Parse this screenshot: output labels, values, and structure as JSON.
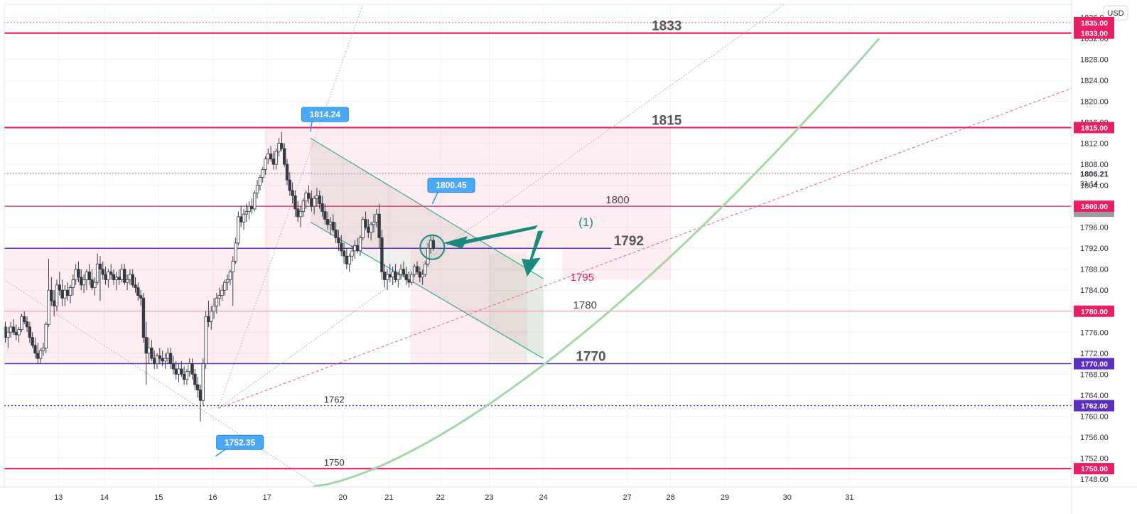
{
  "chart_data": {
    "type": "candlestick",
    "currency": "USD",
    "countdown": "31:14",
    "last_price": "1806.21",
    "ylim": [
      1746.5,
      1838.5
    ],
    "xlim": [
      12.0,
      31.7
    ],
    "y_ticks": [
      "1748.00",
      "1752.00",
      "1756.00",
      "1760.00",
      "1764.00",
      "1768.00",
      "1772.00",
      "1776.00",
      "1780.00",
      "1784.00",
      "1788.00",
      "1792.00",
      "1796.00",
      "1800.00",
      "1804.00",
      "1808.00",
      "1812.00",
      "1816.00",
      "1820.00",
      "1824.00",
      "1828.00",
      "1832.00",
      "1836.00"
    ],
    "x_ticks": [
      {
        "label": "13",
        "x": 13.0
      },
      {
        "label": "14",
        "x": 13.85
      },
      {
        "label": "15",
        "x": 14.85
      },
      {
        "label": "16",
        "x": 15.85
      },
      {
        "label": "17",
        "x": 16.85
      },
      {
        "label": "20",
        "x": 18.25
      },
      {
        "label": "21",
        "x": 19.1
      },
      {
        "label": "22",
        "x": 20.05
      },
      {
        "label": "23",
        "x": 20.95
      },
      {
        "label": "24",
        "x": 21.95
      },
      {
        "label": "27",
        "x": 23.5
      },
      {
        "label": "28",
        "x": 24.3
      },
      {
        "label": "29",
        "x": 25.3
      },
      {
        "label": "30",
        "x": 26.45
      },
      {
        "label": "31",
        "x": 27.6
      }
    ],
    "price_tags": [
      {
        "label": "1835.00",
        "value": 1835.0,
        "color": "#e91e63"
      },
      {
        "label": "1833.00",
        "value": 1833.0,
        "color": "#e91e63"
      },
      {
        "label": "1815.00",
        "value": 1815.0,
        "color": "#e91e63"
      },
      {
        "label": "1800.00",
        "value": 1800.0,
        "color": "#e91e63"
      },
      {
        "label": "1780.00",
        "value": 1780.0,
        "color": "#e91e63"
      },
      {
        "label": "1770.00",
        "value": 1770.0,
        "color": "#5b2fc4"
      },
      {
        "label": "1762.00",
        "value": 1762.0,
        "color": "#5b2fc4"
      },
      {
        "label": "1750.00",
        "value": 1750.0,
        "color": "#e91e63"
      }
    ],
    "levels": [
      {
        "value": 1835.0,
        "style": "dotted-pink"
      },
      {
        "value": 1833.0,
        "style": "solid-pink-thick",
        "label": "1833",
        "label_x": 23.95
      },
      {
        "value": 1815.0,
        "style": "solid-pink-thick",
        "label": "1815",
        "label_x": 23.95
      },
      {
        "value": 1800.0,
        "style": "solid-pink",
        "label": "1800",
        "label_x": 23.1
      },
      {
        "value": 1792.0,
        "style": "solid-purple",
        "label": "1792",
        "label_x": 23.25
      },
      {
        "value": 1780.0,
        "style": "thin-pink",
        "label": "1780",
        "label_x": 22.5
      },
      {
        "value": 1770.0,
        "style": "solid-purple",
        "label": "1770",
        "label_x": 22.55
      },
      {
        "value": 1762.0,
        "style": "dotted-blue",
        "label": "1762",
        "label_x": 17.9
      },
      {
        "value": 1750.0,
        "style": "solid-pink-thick",
        "label": "1750",
        "label_x": 17.9
      }
    ],
    "label_1795": {
      "text": "1795",
      "x": 22.45,
      "y": 1786.5
    },
    "callouts": [
      {
        "label": "1814.24",
        "x": 17.65,
        "y": 1814.24,
        "tag_x": 17.92,
        "tag_y": 1817.5
      },
      {
        "label": "1800.45",
        "x": 19.9,
        "y": 1800.45,
        "tag_x": 20.25,
        "tag_y": 1804.0
      },
      {
        "label": "1752.35",
        "x": 15.9,
        "y": 1752.35,
        "tag_x": 16.35,
        "tag_y": 1755.0
      }
    ],
    "annotation": {
      "text": "(1)",
      "x": 22.6,
      "y": 1796.2
    },
    "candles_ohlc": [
      [
        12.02,
        1777.0,
        1778.0,
        1774.0,
        1775.0
      ],
      [
        12.07,
        1775.0,
        1777.0,
        1773.0,
        1776.0
      ],
      [
        12.12,
        1776.0,
        1778.0,
        1775.0,
        1777.0
      ],
      [
        12.17,
        1777.0,
        1778.5,
        1775.5,
        1776.0
      ],
      [
        12.22,
        1776.0,
        1777.5,
        1774.5,
        1775.5
      ],
      [
        12.27,
        1775.5,
        1777.0,
        1774.0,
        1776.5
      ],
      [
        12.32,
        1776.5,
        1779.5,
        1776.0,
        1779.0
      ],
      [
        12.37,
        1779.0,
        1780.0,
        1777.5,
        1778.0
      ],
      [
        12.42,
        1778.0,
        1779.0,
        1776.0,
        1777.0
      ],
      [
        12.47,
        1777.0,
        1778.0,
        1774.0,
        1775.0
      ],
      [
        12.52,
        1775.0,
        1776.0,
        1773.0,
        1773.5
      ],
      [
        12.57,
        1773.5,
        1775.0,
        1771.0,
        1772.0
      ],
      [
        12.62,
        1772.0,
        1774.0,
        1770.0,
        1771.0
      ],
      [
        12.67,
        1771.0,
        1773.0,
        1770.0,
        1772.5
      ],
      [
        12.72,
        1772.5,
        1774.0,
        1771.5,
        1773.0
      ],
      [
        12.77,
        1773.0,
        1778.0,
        1772.0,
        1777.5
      ],
      [
        12.82,
        1777.5,
        1790.0,
        1777.0,
        1784.0
      ],
      [
        12.87,
        1784.0,
        1786.5,
        1781.0,
        1782.0
      ],
      [
        12.92,
        1782.0,
        1784.0,
        1779.0,
        1781.0
      ],
      [
        12.97,
        1781.0,
        1786.0,
        1780.0,
        1785.0
      ],
      [
        13.02,
        1785.0,
        1787.5,
        1783.0,
        1784.0
      ],
      [
        13.07,
        1784.0,
        1786.0,
        1781.0,
        1782.5
      ],
      [
        13.12,
        1782.5,
        1785.0,
        1781.0,
        1784.0
      ],
      [
        13.17,
        1784.0,
        1785.5,
        1782.0,
        1783.0
      ],
      [
        13.22,
        1783.0,
        1785.0,
        1781.5,
        1784.5
      ],
      [
        13.27,
        1784.5,
        1787.0,
        1783.0,
        1786.0
      ],
      [
        13.32,
        1786.0,
        1789.0,
        1785.0,
        1788.0
      ],
      [
        13.37,
        1788.0,
        1789.5,
        1785.5,
        1786.5
      ],
      [
        13.42,
        1786.5,
        1788.0,
        1784.0,
        1785.0
      ],
      [
        13.47,
        1785.0,
        1787.0,
        1783.5,
        1786.0
      ],
      [
        13.52,
        1786.0,
        1788.0,
        1784.0,
        1787.5
      ],
      [
        13.57,
        1787.5,
        1789.0,
        1785.0,
        1786.0
      ],
      [
        13.62,
        1786.0,
        1788.0,
        1784.0,
        1784.5
      ],
      [
        13.67,
        1784.5,
        1786.5,
        1783.0,
        1785.5
      ],
      [
        13.72,
        1785.5,
        1791.0,
        1785.0,
        1789.0
      ],
      [
        13.77,
        1789.0,
        1790.5,
        1782.0,
        1788.0
      ],
      [
        13.82,
        1788.0,
        1789.5,
        1786.0,
        1787.0
      ],
      [
        13.87,
        1787.0,
        1788.5,
        1785.0,
        1786.0
      ],
      [
        13.92,
        1786.0,
        1788.0,
        1784.5,
        1787.5
      ],
      [
        13.97,
        1787.5,
        1789.0,
        1786.0,
        1787.0
      ],
      [
        14.02,
        1787.0,
        1788.0,
        1785.0,
        1786.0
      ],
      [
        14.07,
        1786.0,
        1787.5,
        1784.0,
        1786.5
      ],
      [
        14.12,
        1786.5,
        1788.0,
        1785.0,
        1786.0
      ],
      [
        14.17,
        1786.0,
        1789.0,
        1785.5,
        1788.0
      ],
      [
        14.22,
        1788.0,
        1789.0,
        1785.0,
        1785.5
      ],
      [
        14.27,
        1785.5,
        1787.0,
        1784.0,
        1786.0
      ],
      [
        14.32,
        1786.0,
        1788.0,
        1785.0,
        1787.0
      ],
      [
        14.37,
        1787.0,
        1788.0,
        1784.5,
        1785.0
      ],
      [
        14.42,
        1785.0,
        1786.5,
        1783.5,
        1784.5
      ],
      [
        14.47,
        1784.5,
        1785.5,
        1782.0,
        1783.0
      ],
      [
        14.52,
        1783.0,
        1784.0,
        1781.0,
        1782.5
      ],
      [
        14.57,
        1782.5,
        1783.5,
        1774.0,
        1775.0
      ],
      [
        14.62,
        1775.0,
        1778.0,
        1766.0,
        1772.0
      ],
      [
        14.67,
        1772.0,
        1775.0,
        1770.0,
        1773.0
      ],
      [
        14.72,
        1773.0,
        1774.5,
        1770.5,
        1771.0
      ],
      [
        14.77,
        1771.0,
        1772.5,
        1769.0,
        1770.0
      ],
      [
        14.82,
        1770.0,
        1772.0,
        1769.0,
        1771.5
      ],
      [
        14.87,
        1771.5,
        1773.0,
        1770.0,
        1771.0
      ],
      [
        14.92,
        1771.0,
        1772.5,
        1769.5,
        1770.5
      ],
      [
        14.97,
        1770.5,
        1772.0,
        1769.0,
        1771.0
      ],
      [
        15.02,
        1771.0,
        1773.0,
        1770.0,
        1772.0
      ],
      [
        15.07,
        1772.0,
        1773.0,
        1769.0,
        1770.0
      ],
      [
        15.12,
        1770.0,
        1771.5,
        1768.0,
        1769.0
      ],
      [
        15.17,
        1769.0,
        1770.5,
        1767.0,
        1768.0
      ],
      [
        15.22,
        1768.0,
        1770.0,
        1766.5,
        1769.0
      ],
      [
        15.27,
        1769.0,
        1770.5,
        1767.5,
        1768.0
      ],
      [
        15.32,
        1768.0,
        1769.5,
        1766.0,
        1767.0
      ],
      [
        15.37,
        1767.0,
        1769.0,
        1766.0,
        1768.5
      ],
      [
        15.42,
        1768.5,
        1771.0,
        1767.5,
        1770.0
      ],
      [
        15.47,
        1770.0,
        1771.0,
        1767.0,
        1768.0
      ],
      [
        15.52,
        1768.0,
        1769.0,
        1765.0,
        1766.0
      ],
      [
        15.57,
        1766.0,
        1767.5,
        1763.5,
        1765.0
      ],
      [
        15.62,
        1765.0,
        1766.0,
        1759.0,
        1763.0
      ],
      [
        15.67,
        1763.0,
        1771.0,
        1762.0,
        1770.0
      ],
      [
        15.72,
        1770.0,
        1780.0,
        1769.0,
        1779.0
      ],
      [
        15.77,
        1779.0,
        1782.0,
        1777.0,
        1778.0
      ],
      [
        15.82,
        1778.0,
        1781.0,
        1776.5,
        1780.0
      ],
      [
        15.87,
        1780.0,
        1782.5,
        1778.5,
        1781.0
      ],
      [
        15.92,
        1781.0,
        1783.5,
        1779.5,
        1782.5
      ],
      [
        15.97,
        1782.5,
        1784.5,
        1781.0,
        1783.0
      ],
      [
        16.02,
        1783.0,
        1785.0,
        1782.0,
        1784.0
      ],
      [
        16.07,
        1784.0,
        1786.0,
        1783.0,
        1785.5
      ],
      [
        16.12,
        1785.5,
        1787.0,
        1784.0,
        1786.0
      ],
      [
        16.17,
        1786.0,
        1788.0,
        1785.0,
        1787.5
      ],
      [
        16.22,
        1787.5,
        1790.5,
        1781.0,
        1789.5
      ],
      [
        16.27,
        1789.5,
        1794.0,
        1789.0,
        1793.0
      ],
      [
        16.32,
        1793.0,
        1799.0,
        1792.5,
        1798.0
      ],
      [
        16.37,
        1798.0,
        1800.0,
        1796.0,
        1797.0
      ],
      [
        16.42,
        1797.0,
        1799.5,
        1795.5,
        1798.5
      ],
      [
        16.47,
        1798.5,
        1800.5,
        1797.0,
        1799.0
      ],
      [
        16.52,
        1799.0,
        1801.0,
        1797.5,
        1800.0
      ],
      [
        16.57,
        1800.0,
        1801.5,
        1798.5,
        1799.5
      ],
      [
        16.62,
        1799.5,
        1803.0,
        1799.0,
        1802.5
      ],
      [
        16.67,
        1802.5,
        1805.0,
        1801.5,
        1804.0
      ],
      [
        16.72,
        1804.0,
        1806.0,
        1803.0,
        1805.5
      ],
      [
        16.77,
        1805.5,
        1807.5,
        1804.5,
        1807.0
      ],
      [
        16.82,
        1807.0,
        1809.5,
        1806.0,
        1809.0
      ],
      [
        16.87,
        1809.0,
        1811.0,
        1808.0,
        1810.0
      ],
      [
        16.92,
        1810.0,
        1811.5,
        1808.5,
        1809.0
      ],
      [
        16.97,
        1809.0,
        1810.5,
        1807.0,
        1808.0
      ],
      [
        17.02,
        1808.0,
        1811.0,
        1807.0,
        1810.5
      ],
      [
        17.07,
        1810.5,
        1813.0,
        1809.5,
        1812.0
      ],
      [
        17.12,
        1812.0,
        1814.2,
        1810.5,
        1811.0
      ],
      [
        17.17,
        1811.0,
        1812.0,
        1807.5,
        1808.0
      ],
      [
        17.22,
        1808.0,
        1809.0,
        1804.0,
        1805.0
      ],
      [
        17.27,
        1805.0,
        1806.5,
        1802.0,
        1803.0
      ],
      [
        17.32,
        1803.0,
        1804.5,
        1800.5,
        1802.0
      ],
      [
        17.37,
        1802.0,
        1803.0,
        1798.0,
        1799.5
      ],
      [
        17.42,
        1799.5,
        1801.0,
        1797.0,
        1798.0
      ],
      [
        17.47,
        1798.0,
        1800.0,
        1796.0,
        1799.0
      ],
      [
        17.52,
        1799.0,
        1801.5,
        1798.0,
        1801.0
      ],
      [
        17.57,
        1801.0,
        1803.0,
        1799.5,
        1802.5
      ],
      [
        17.62,
        1802.5,
        1804.0,
        1800.5,
        1801.5
      ],
      [
        17.67,
        1801.5,
        1803.0,
        1799.0,
        1800.0
      ],
      [
        17.72,
        1800.0,
        1802.0,
        1798.5,
        1801.5
      ],
      [
        17.77,
        1801.5,
        1803.5,
        1800.0,
        1802.0
      ],
      [
        17.82,
        1802.0,
        1803.0,
        1799.5,
        1800.5
      ],
      [
        17.87,
        1800.5,
        1802.0,
        1798.0,
        1799.0
      ],
      [
        17.92,
        1799.0,
        1800.5,
        1796.5,
        1797.5
      ],
      [
        17.97,
        1797.5,
        1799.0,
        1795.5,
        1796.5
      ],
      [
        18.02,
        1796.5,
        1798.0,
        1794.5,
        1797.0
      ],
      [
        18.07,
        1797.0,
        1798.5,
        1795.0,
        1795.5
      ],
      [
        18.12,
        1795.5,
        1797.0,
        1793.0,
        1794.0
      ],
      [
        18.17,
        1794.0,
        1795.5,
        1791.5,
        1793.0
      ],
      [
        18.22,
        1793.0,
        1794.5,
        1790.5,
        1791.5
      ],
      [
        18.27,
        1791.5,
        1793.0,
        1789.0,
        1790.5
      ],
      [
        18.32,
        1790.5,
        1792.0,
        1788.0,
        1789.0
      ],
      [
        18.37,
        1789.0,
        1791.0,
        1787.5,
        1790.5
      ],
      [
        18.42,
        1790.5,
        1792.5,
        1789.5,
        1791.5
      ],
      [
        18.47,
        1791.5,
        1793.5,
        1790.0,
        1792.5
      ],
      [
        18.52,
        1792.5,
        1794.0,
        1791.0,
        1791.5
      ],
      [
        18.57,
        1791.5,
        1794.5,
        1790.5,
        1794.0
      ],
      [
        18.62,
        1794.0,
        1798.0,
        1793.5,
        1797.5
      ],
      [
        18.67,
        1797.5,
        1799.0,
        1795.5,
        1796.0
      ],
      [
        18.72,
        1796.0,
        1797.5,
        1794.0,
        1795.0
      ],
      [
        18.77,
        1795.0,
        1797.0,
        1793.5,
        1796.5
      ],
      [
        18.82,
        1796.5,
        1798.5,
        1795.0,
        1797.0
      ],
      [
        18.87,
        1797.0,
        1799.5,
        1796.0,
        1798.5
      ],
      [
        18.92,
        1798.5,
        1800.5,
        1792.0,
        1794.0
      ],
      [
        18.97,
        1794.0,
        1795.5,
        1786.0,
        1787.5
      ],
      [
        19.02,
        1787.5,
        1789.0,
        1784.5,
        1786.0
      ],
      [
        19.07,
        1786.0,
        1788.0,
        1784.0,
        1787.0
      ],
      [
        19.12,
        1787.0,
        1789.0,
        1785.5,
        1786.5
      ],
      [
        19.17,
        1786.5,
        1788.5,
        1785.0,
        1787.5
      ],
      [
        19.22,
        1787.5,
        1789.0,
        1785.5,
        1786.0
      ],
      [
        19.27,
        1786.0,
        1787.5,
        1784.5,
        1787.0
      ],
      [
        19.32,
        1787.0,
        1789.0,
        1786.0,
        1788.0
      ],
      [
        19.37,
        1788.0,
        1789.5,
        1786.5,
        1787.0
      ],
      [
        19.42,
        1787.0,
        1788.5,
        1785.0,
        1786.0
      ],
      [
        19.47,
        1786.0,
        1787.5,
        1784.5,
        1785.5
      ],
      [
        19.52,
        1785.5,
        1787.5,
        1785.0,
        1787.0
      ],
      [
        19.57,
        1787.0,
        1789.0,
        1786.5,
        1788.5
      ],
      [
        19.62,
        1788.5,
        1789.5,
        1787.0,
        1787.5
      ],
      [
        19.67,
        1787.5,
        1788.5,
        1785.5,
        1786.5
      ],
      [
        19.72,
        1786.5,
        1788.0,
        1785.0,
        1787.0
      ],
      [
        19.77,
        1787.0,
        1789.5,
        1786.5,
        1789.0
      ],
      [
        19.82,
        1789.0,
        1793.0,
        1788.5,
        1792.0
      ],
      [
        19.87,
        1792.0,
        1794.5,
        1791.0,
        1793.5
      ],
      [
        19.92,
        1793.5,
        1794.5,
        1791.5,
        1792.0
      ]
    ]
  }
}
